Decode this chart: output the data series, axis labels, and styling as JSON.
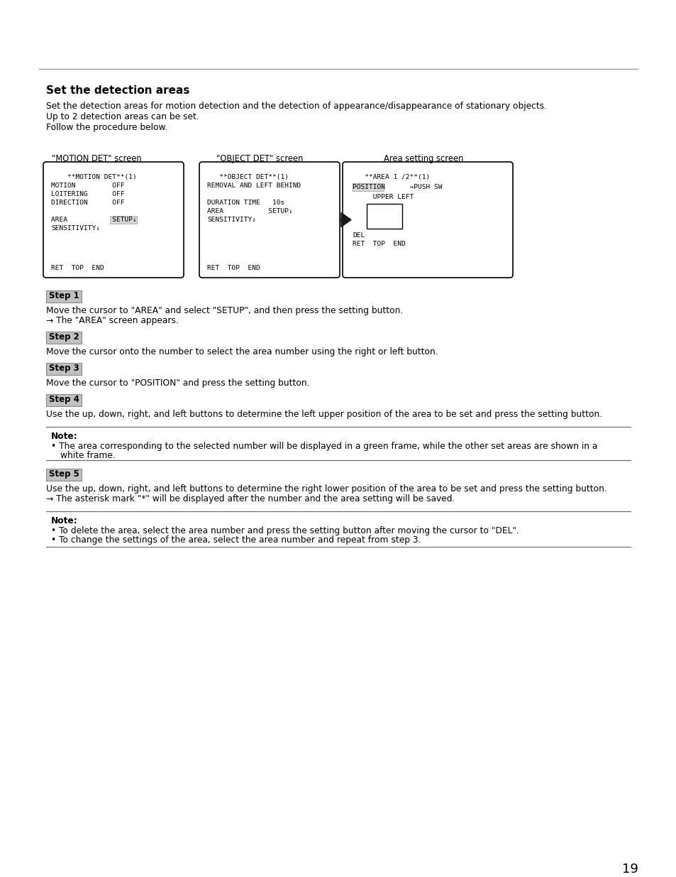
{
  "title": "Set the detection areas",
  "intro_lines": [
    "Set the detection areas for motion detection and the detection of appearance/disappearance of stationary objects.",
    "Up to 2 detection areas can be set.",
    "Follow the procedure below."
  ],
  "screen_labels": [
    "\"MOTION DET\" screen",
    "\"OBJECT DET\" screen",
    "Area setting screen"
  ],
  "motion_det_lines": [
    "    **MOTION DET**(1)",
    "MOTION         OFF",
    "LOITERING      OFF",
    "DIRECTION      OFF",
    "",
    "AREA           SETUP↓",
    "SENSITIVITY↓"
  ],
  "object_det_lines": [
    "   **OBJECT DET**(1)",
    "REMOVAL AND LEFT BEHIND",
    "",
    "DURATION TIME   10s",
    "AREA           SETUP↓",
    "SENSITIVITY↓"
  ],
  "area_setting_line1": "   **AREA 1 /2**(1)",
  "area_position_line": "POSITION      →PUSH SW",
  "area_upper_left": "     UPPER LEFT",
  "area_del": "DEL",
  "area_ret": "RET  TOP  END",
  "bottom_ret": "RET  TOP  END",
  "steps": [
    {
      "label": "Step 1",
      "lines": [
        "Move the cursor to \"AREA\" and select \"SETUP\", and then press the setting button.",
        "→ The \"AREA\" screen appears."
      ]
    },
    {
      "label": "Step 2",
      "lines": [
        "Move the cursor onto the number to select the area number using the right or left button."
      ]
    },
    {
      "label": "Step 3",
      "lines": [
        "Move the cursor to \"POSITION\" and press the setting button."
      ]
    },
    {
      "label": "Step 4",
      "lines": [
        "Use the up, down, right, and left buttons to determine the left upper position of the area to be set and press the setting button."
      ]
    }
  ],
  "note1_label": "Note:",
  "note1_bullet1a": "The area corresponding to the selected number will be displayed in a green frame, while the other set areas are shown in a",
  "note1_bullet1b": "white frame.",
  "step5_label": "Step 5",
  "step5_lines": [
    "Use the up, down, right, and left buttons to determine the right lower position of the area to be set and press the setting button.",
    "→ The asterisk mark \"*\" will be displayed after the number and the area setting will be saved."
  ],
  "note2_label": "Note:",
  "note2_bullets": [
    "To delete the area, select the area number and press the setting button after moving the cursor to \"DEL\".",
    "To change the settings of the area, select the area number and repeat from step 3."
  ],
  "page_number": "19"
}
